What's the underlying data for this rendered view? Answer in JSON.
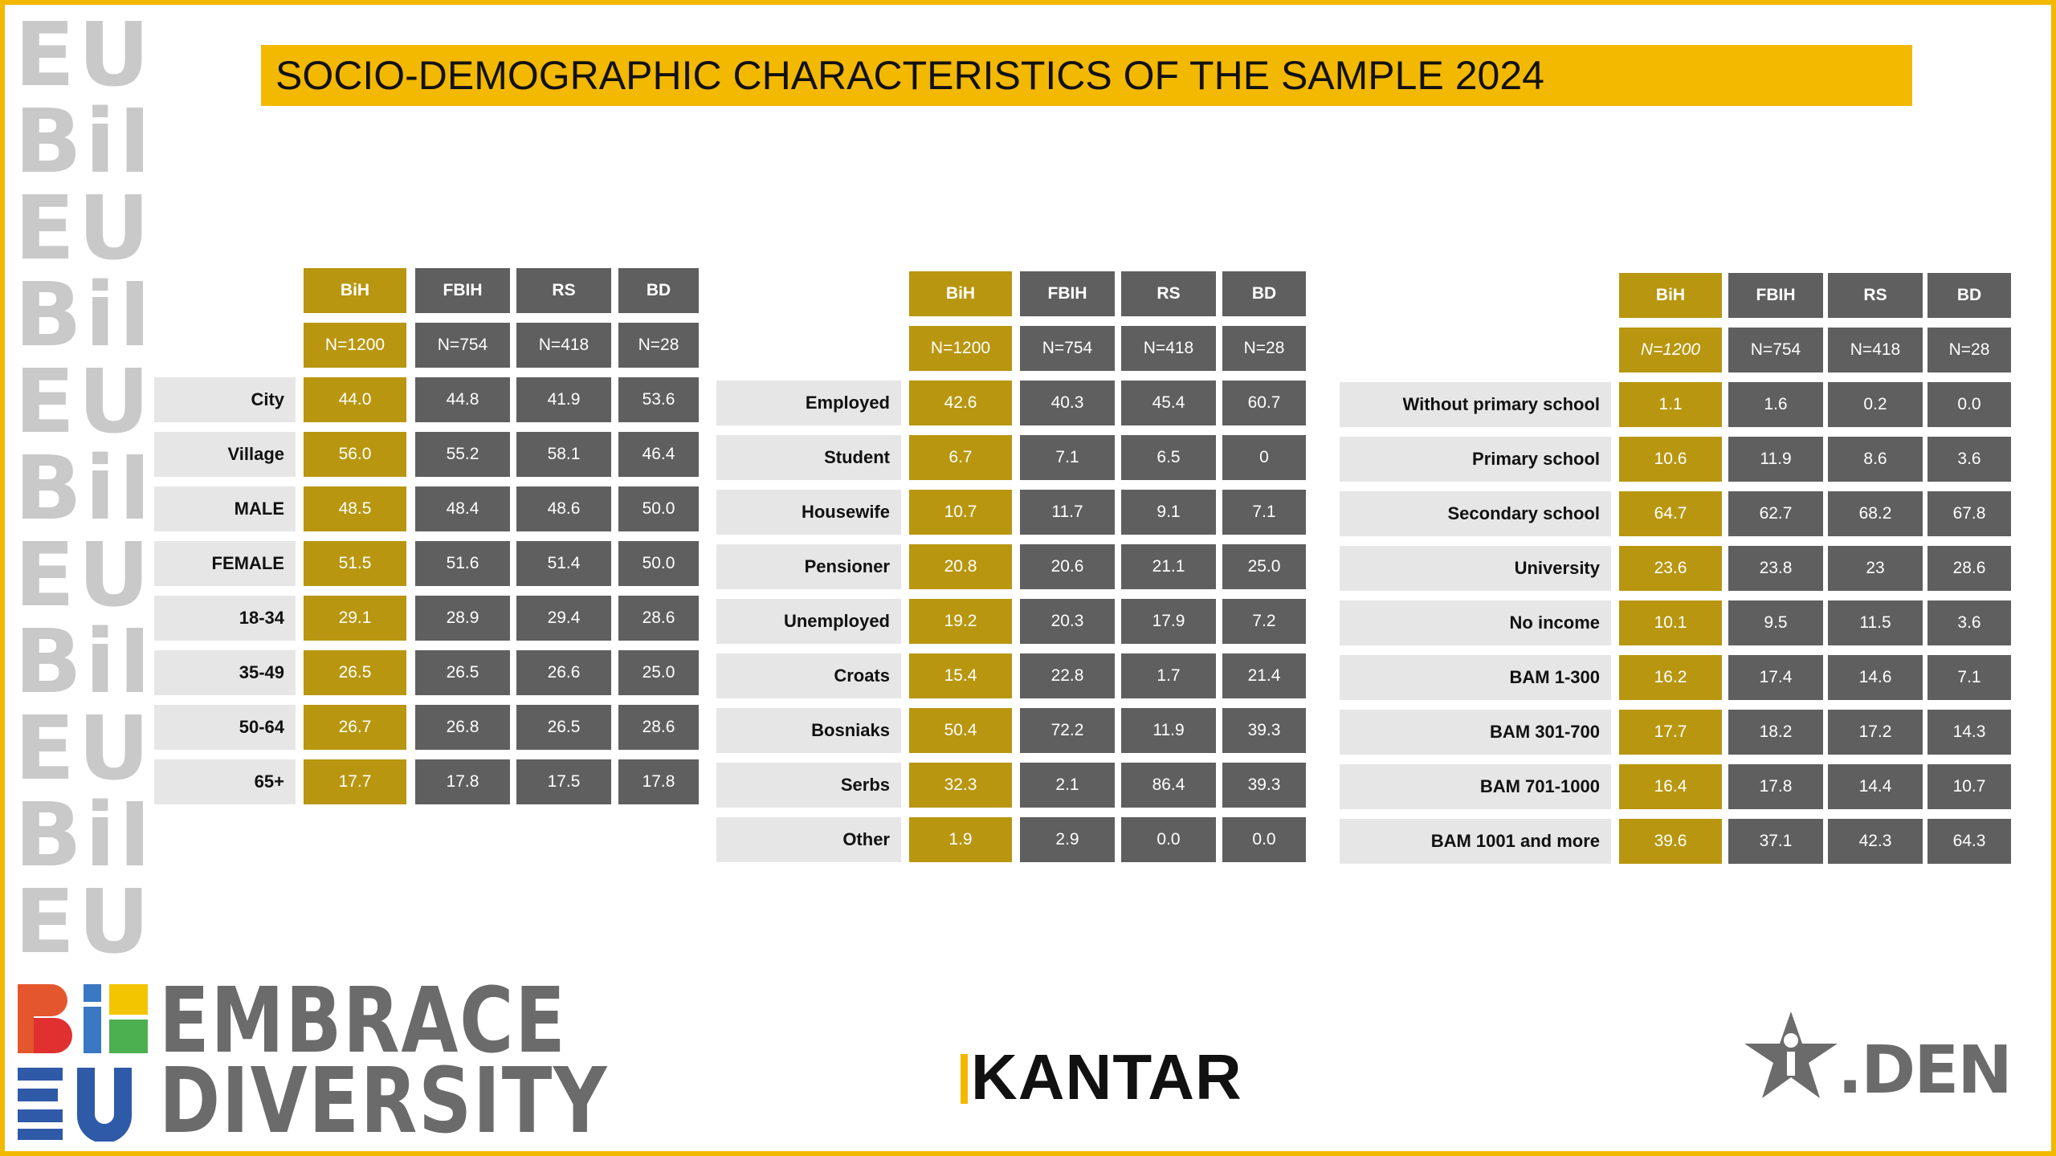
{
  "title": "SOCIO-DEMOGRAPHIC CHARACTERISTICS OF THE SAMPLE 2024",
  "colors": {
    "accent": "#f3b800",
    "gold_cell": "#b8960f",
    "grey_cell": "#5f5f5f",
    "label_bg": "#e6e6e6"
  },
  "watermark_glyphs": [
    "EU",
    "BiH",
    "EU",
    "BiH",
    "EU",
    "BiH",
    "EU",
    "BiH",
    "EU",
    "BiH",
    "EU"
  ],
  "tables": [
    {
      "headers": [
        "BiH",
        "FBIH",
        "RS",
        "BD"
      ],
      "ns": [
        "N=1200",
        "N=754",
        "N=418",
        "N=28"
      ],
      "rows": [
        {
          "label": "City",
          "values": [
            "44.0",
            "44.8",
            "41.9",
            "53.6"
          ]
        },
        {
          "label": "Village",
          "values": [
            "56.0",
            "55.2",
            "58.1",
            "46.4"
          ]
        },
        {
          "label": "MALE",
          "values": [
            "48.5",
            "48.4",
            "48.6",
            "50.0"
          ]
        },
        {
          "label": "FEMALE",
          "values": [
            "51.5",
            "51.6",
            "51.4",
            "50.0"
          ]
        },
        {
          "label": "18-34",
          "values": [
            "29.1",
            "28.9",
            "29.4",
            "28.6"
          ]
        },
        {
          "label": "35-49",
          "values": [
            "26.5",
            "26.5",
            "26.6",
            "25.0"
          ]
        },
        {
          "label": "50-64",
          "values": [
            "26.7",
            "26.8",
            "26.5",
            "28.6"
          ]
        },
        {
          "label": "65+",
          "values": [
            "17.7",
            "17.8",
            "17.5",
            "17.8"
          ]
        }
      ]
    },
    {
      "headers": [
        "BiH",
        "FBIH",
        "RS",
        "BD"
      ],
      "ns": [
        "N=1200",
        "N=754",
        "N=418",
        "N=28"
      ],
      "rows": [
        {
          "label": "Employed",
          "values": [
            "42.6",
            "40.3",
            "45.4",
            "60.7"
          ]
        },
        {
          "label": "Student",
          "values": [
            "6.7",
            "7.1",
            "6.5",
            "0"
          ]
        },
        {
          "label": "Housewife",
          "values": [
            "10.7",
            "11.7",
            "9.1",
            "7.1"
          ]
        },
        {
          "label": "Pensioner",
          "values": [
            "20.8",
            "20.6",
            "21.1",
            "25.0"
          ]
        },
        {
          "label": "Unemployed",
          "values": [
            "19.2",
            "20.3",
            "17.9",
            "7.2"
          ]
        },
        {
          "label": "Croats",
          "values": [
            "15.4",
            "22.8",
            "1.7",
            "21.4"
          ]
        },
        {
          "label": "Bosniaks",
          "values": [
            "50.4",
            "72.2",
            "11.9",
            "39.3"
          ]
        },
        {
          "label": "Serbs",
          "values": [
            "32.3",
            "2.1",
            "86.4",
            "39.3"
          ]
        },
        {
          "label": "Other",
          "values": [
            "1.9",
            "2.9",
            "0.0",
            "0.0"
          ]
        }
      ]
    },
    {
      "headers": [
        "BiH",
        "FBIH",
        "RS",
        "BD"
      ],
      "ns": [
        "N=1200",
        "N=754",
        "N=418",
        "N=28"
      ],
      "rows": [
        {
          "label": "Without primary school",
          "values": [
            "1.1",
            "1.6",
            "0.2",
            "0.0"
          ]
        },
        {
          "label": "Primary school",
          "values": [
            "10.6",
            "11.9",
            "8.6",
            "3.6"
          ]
        },
        {
          "label": "Secondary school",
          "values": [
            "64.7",
            "62.7",
            "68.2",
            "67.8"
          ]
        },
        {
          "label": "University",
          "values": [
            "23.6",
            "23.8",
            "23",
            "28.6"
          ]
        },
        {
          "label": "No income",
          "values": [
            "10.1",
            "9.5",
            "11.5",
            "3.6"
          ]
        },
        {
          "label": "BAM 1-300",
          "values": [
            "16.2",
            "17.4",
            "14.6",
            "7.1"
          ]
        },
        {
          "label": "BAM 301-700",
          "values": [
            "17.7",
            "18.2",
            "17.2",
            "14.3"
          ]
        },
        {
          "label": "BAM 701-1000",
          "values": [
            "16.4",
            "17.8",
            "14.4",
            "10.7"
          ]
        },
        {
          "label": "BAM 1001 and more",
          "values": [
            "39.6",
            "37.1",
            "42.3",
            "64.3"
          ]
        }
      ]
    }
  ],
  "logos": {
    "embrace_line1": "EMBRACE",
    "embrace_line2": "DIVERSITY",
    "kantar": "KANTAR",
    "den": ".DEN",
    "embrace_icon": "bih-eu-icon",
    "den_icon": "star-person-icon"
  }
}
